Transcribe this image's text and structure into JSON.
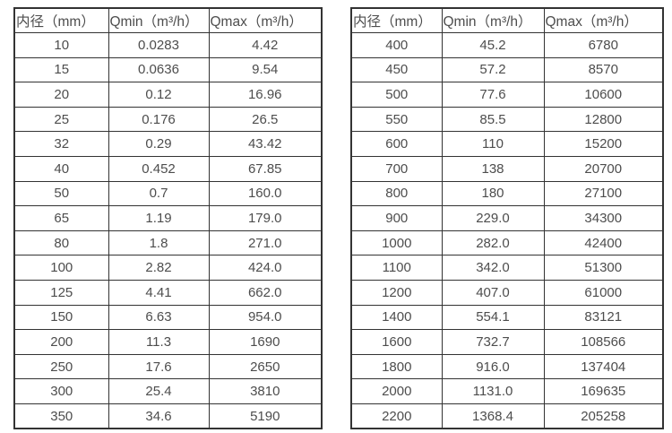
{
  "tables": [
    {
      "name": "flow-table-small-diameters",
      "headers": [
        "内径（mm）",
        "Qmin（m³/h）",
        "Qmax（m³/h）"
      ],
      "rows": [
        [
          "10",
          "0.0283",
          "4.42"
        ],
        [
          "15",
          "0.0636",
          "9.54"
        ],
        [
          "20",
          "0.12",
          "16.96"
        ],
        [
          "25",
          "0.176",
          "26.5"
        ],
        [
          "32",
          "0.29",
          "43.42"
        ],
        [
          "40",
          "0.452",
          "67.85"
        ],
        [
          "50",
          "0.7",
          "160.0"
        ],
        [
          "65",
          "1.19",
          "179.0"
        ],
        [
          "80",
          "1.8",
          "271.0"
        ],
        [
          "100",
          "2.82",
          "424.0"
        ],
        [
          "125",
          "4.41",
          "662.0"
        ],
        [
          "150",
          "6.63",
          "954.0"
        ],
        [
          "200",
          "11.3",
          "1690"
        ],
        [
          "250",
          "17.6",
          "2650"
        ],
        [
          "300",
          "25.4",
          "3810"
        ],
        [
          "350",
          "34.6",
          "5190"
        ]
      ]
    },
    {
      "name": "flow-table-large-diameters",
      "headers": [
        "内径（mm）",
        "Qmin（m³/h）",
        "Qmax（m³/h）"
      ],
      "rows": [
        [
          "400",
          "45.2",
          "6780"
        ],
        [
          "450",
          "57.2",
          "8570"
        ],
        [
          "500",
          "77.6",
          "10600"
        ],
        [
          "550",
          "85.5",
          "12800"
        ],
        [
          "600",
          "110",
          "15200"
        ],
        [
          "700",
          "138",
          "20700"
        ],
        [
          "800",
          "180",
          "27100"
        ],
        [
          "900",
          "229.0",
          "34300"
        ],
        [
          "1000",
          "282.0",
          "42400"
        ],
        [
          "1100",
          "342.0",
          "51300"
        ],
        [
          "1200",
          "407.0",
          "61000"
        ],
        [
          "1400",
          "554.1",
          "83121"
        ],
        [
          "1600",
          "732.7",
          "108566"
        ],
        [
          "1800",
          "916.0",
          "137404"
        ],
        [
          "2000",
          "1131.0",
          "169635"
        ],
        [
          "2200",
          "1368.4",
          "205258"
        ]
      ]
    }
  ],
  "colors": {
    "border": "#333333",
    "text": "#4d4d4d",
    "background": "#ffffff"
  }
}
